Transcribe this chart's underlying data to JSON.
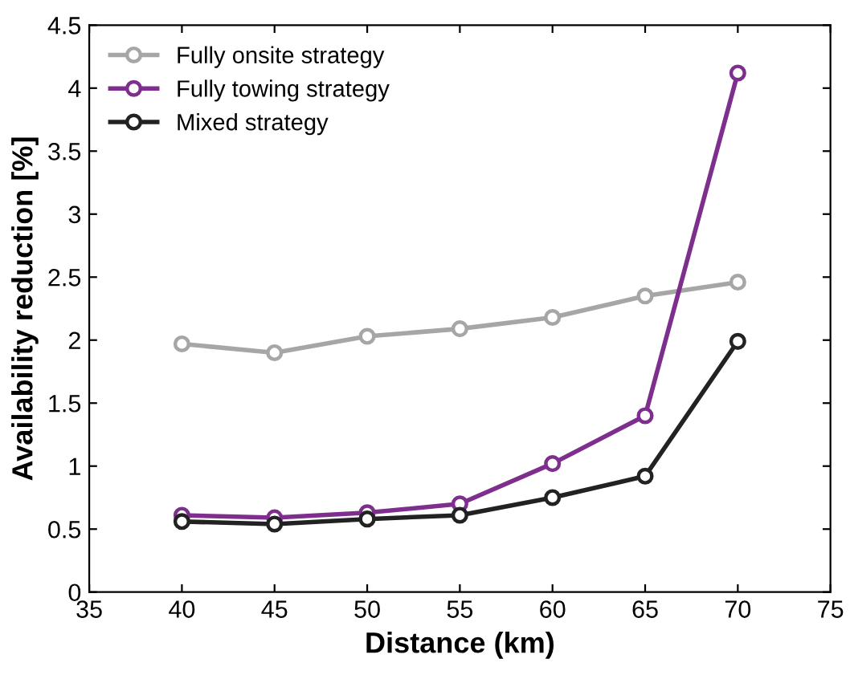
{
  "chart_data": {
    "type": "line",
    "xlabel": "Distance (km)",
    "ylabel": "Availability reduction [%]",
    "x": [
      40,
      45,
      50,
      55,
      60,
      65,
      70
    ],
    "series": [
      {
        "name": "Fully onsite strategy",
        "color": "#a6a6a6",
        "values": [
          1.97,
          1.9,
          2.03,
          2.09,
          2.18,
          2.35,
          2.46
        ]
      },
      {
        "name": "Fully towing strategy",
        "color": "#7e2f8e",
        "values": [
          0.61,
          0.59,
          0.63,
          0.7,
          1.02,
          1.4,
          4.12
        ]
      },
      {
        "name": "Mixed strategy",
        "color": "#222222",
        "values": [
          0.56,
          0.54,
          0.58,
          0.61,
          0.75,
          0.92,
          1.99
        ]
      }
    ],
    "xlim": [
      35,
      75
    ],
    "xticks": [
      35,
      40,
      45,
      50,
      55,
      60,
      65,
      70,
      75
    ],
    "ylim": [
      0,
      4.5
    ],
    "yticks": [
      0,
      0.5,
      1,
      1.5,
      2,
      2.5,
      3,
      3.5,
      4,
      4.5
    ],
    "marker": "circle",
    "line_style": "solid",
    "legend": "top left",
    "grid": false
  }
}
